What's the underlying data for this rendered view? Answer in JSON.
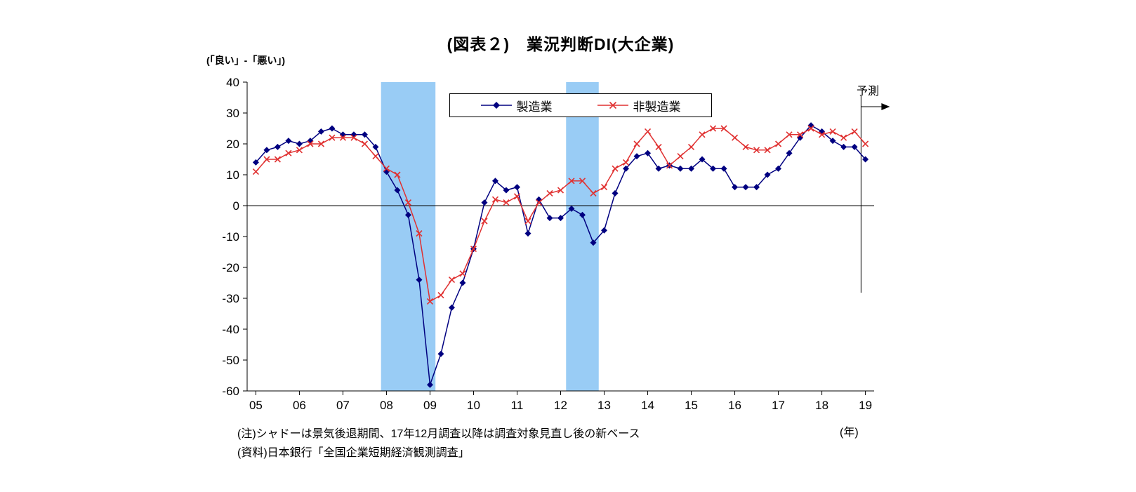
{
  "page": {
    "title": "(図表２)　業況判断DI(大企業)",
    "y_axis_caption": "(「良い」-「悪い」)",
    "x_axis_unit": "(年)",
    "forecast_label": "予測",
    "note1": "(注)シャドーは景気後退期間、17年12月調査以降は調査対象見直し後の新ベース",
    "note2": "(資料)日本銀行「全国企業短期経済観測調査」"
  },
  "chart_data": {
    "type": "line",
    "title": "(図表２)　業況判断DI(大企業)",
    "ylabel": "(「良い」-「悪い」)",
    "xlabel": "(年)",
    "ylim": [
      -60,
      40
    ],
    "ytick_step": 10,
    "grid": false,
    "legend_position": "top-center",
    "x_start_year": 2005,
    "x_quarter_step": 0.25,
    "x_tick_years": [
      "05",
      "06",
      "07",
      "08",
      "09",
      "10",
      "11",
      "12",
      "13",
      "14",
      "15",
      "16",
      "17",
      "18",
      "19"
    ],
    "shade_color": "#99ccf5",
    "shaded_regions": [
      {
        "from": 2007.875,
        "to": 2009.125
      },
      {
        "from": 2012.125,
        "to": 2012.875
      }
    ],
    "forecast": {
      "label": "予測",
      "boundary_x": 2018.9,
      "note": "last value of each series is forecast"
    },
    "series": [
      {
        "name": "製造業",
        "color": "#000080",
        "marker": "diamond",
        "values": [
          14,
          18,
          19,
          21,
          20,
          21,
          24,
          25,
          23,
          23,
          23,
          19,
          11,
          5,
          -3,
          -24,
          -58,
          -48,
          -33,
          -25,
          -14,
          1,
          8,
          5,
          6,
          -9,
          2,
          -4,
          -4,
          -1,
          -3,
          -12,
          -8,
          4,
          12,
          16,
          17,
          12,
          13,
          12,
          12,
          15,
          12,
          12,
          6,
          6,
          6,
          10,
          12,
          17,
          22,
          26,
          24,
          21,
          19,
          19,
          15
        ]
      },
      {
        "name": "非製造業",
        "color": "#e03131",
        "marker": "x",
        "values": [
          11,
          15,
          15,
          17,
          18,
          20,
          20,
          22,
          22,
          22,
          20,
          16,
          12,
          10,
          1,
          -9,
          -31,
          -29,
          -24,
          -22,
          -14,
          -5,
          2,
          1,
          3,
          -5,
          1,
          4,
          5,
          8,
          8,
          4,
          6,
          12,
          14,
          20,
          24,
          19,
          13,
          16,
          19,
          23,
          25,
          25,
          22,
          19,
          18,
          18,
          20,
          23,
          23,
          25,
          23,
          24,
          22,
          24,
          20
        ]
      }
    ]
  }
}
